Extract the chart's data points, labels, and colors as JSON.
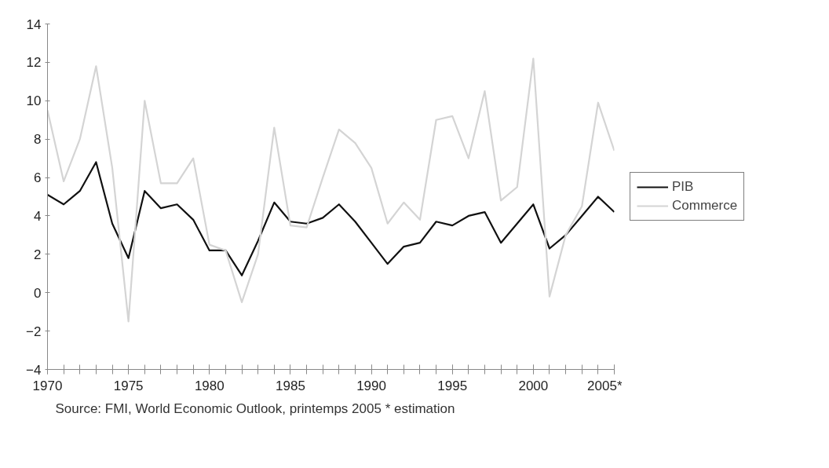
{
  "chart_data": {
    "type": "line",
    "x": [
      1970,
      1971,
      1972,
      1973,
      1974,
      1975,
      1976,
      1977,
      1978,
      1979,
      1980,
      1981,
      1982,
      1983,
      1984,
      1985,
      1986,
      1987,
      1988,
      1989,
      1990,
      1991,
      1992,
      1993,
      1994,
      1995,
      1996,
      1997,
      1998,
      1999,
      2000,
      2001,
      2002,
      2003,
      2004,
      2005
    ],
    "series": [
      {
        "name": "PIB",
        "color": "#111111",
        "values": [
          5.1,
          4.6,
          5.3,
          6.8,
          3.6,
          1.8,
          5.3,
          4.4,
          4.6,
          3.8,
          2.2,
          2.2,
          0.9,
          2.7,
          4.7,
          3.7,
          3.6,
          3.9,
          4.6,
          3.7,
          2.6,
          1.5,
          2.4,
          2.6,
          3.7,
          3.5,
          4.0,
          4.2,
          2.6,
          3.6,
          4.6,
          2.3,
          3.0,
          4.0,
          5.0,
          4.2
        ]
      },
      {
        "name": "Commerce",
        "color": "#d4d4d4",
        "values": [
          9.5,
          5.8,
          8.0,
          11.8,
          6.5,
          -1.5,
          10.0,
          5.7,
          5.7,
          7.0,
          2.5,
          2.2,
          -0.5,
          2.0,
          8.6,
          3.5,
          3.4,
          6.0,
          8.5,
          7.8,
          6.5,
          3.6,
          4.7,
          3.8,
          9.0,
          9.2,
          7.0,
          10.5,
          4.8,
          5.5,
          12.2,
          -0.2,
          3.0,
          4.5,
          9.9,
          7.4
        ]
      }
    ],
    "xlim": [
      1970,
      2005
    ],
    "xticks": [
      1970,
      1975,
      1980,
      1985,
      1990,
      1995,
      2000,
      {
        "value": 2005,
        "label": "2005*"
      }
    ],
    "ylim": [
      -4,
      14
    ],
    "yticks": [
      -4,
      -2,
      0,
      2,
      4,
      6,
      8,
      10,
      12,
      14
    ],
    "grid": false,
    "legend": "right",
    "line_style": "solid",
    "marker": "none",
    "annotations": [
      "Source: FMI, World Economic Outlook, printemps 2005   * estimation"
    ]
  }
}
